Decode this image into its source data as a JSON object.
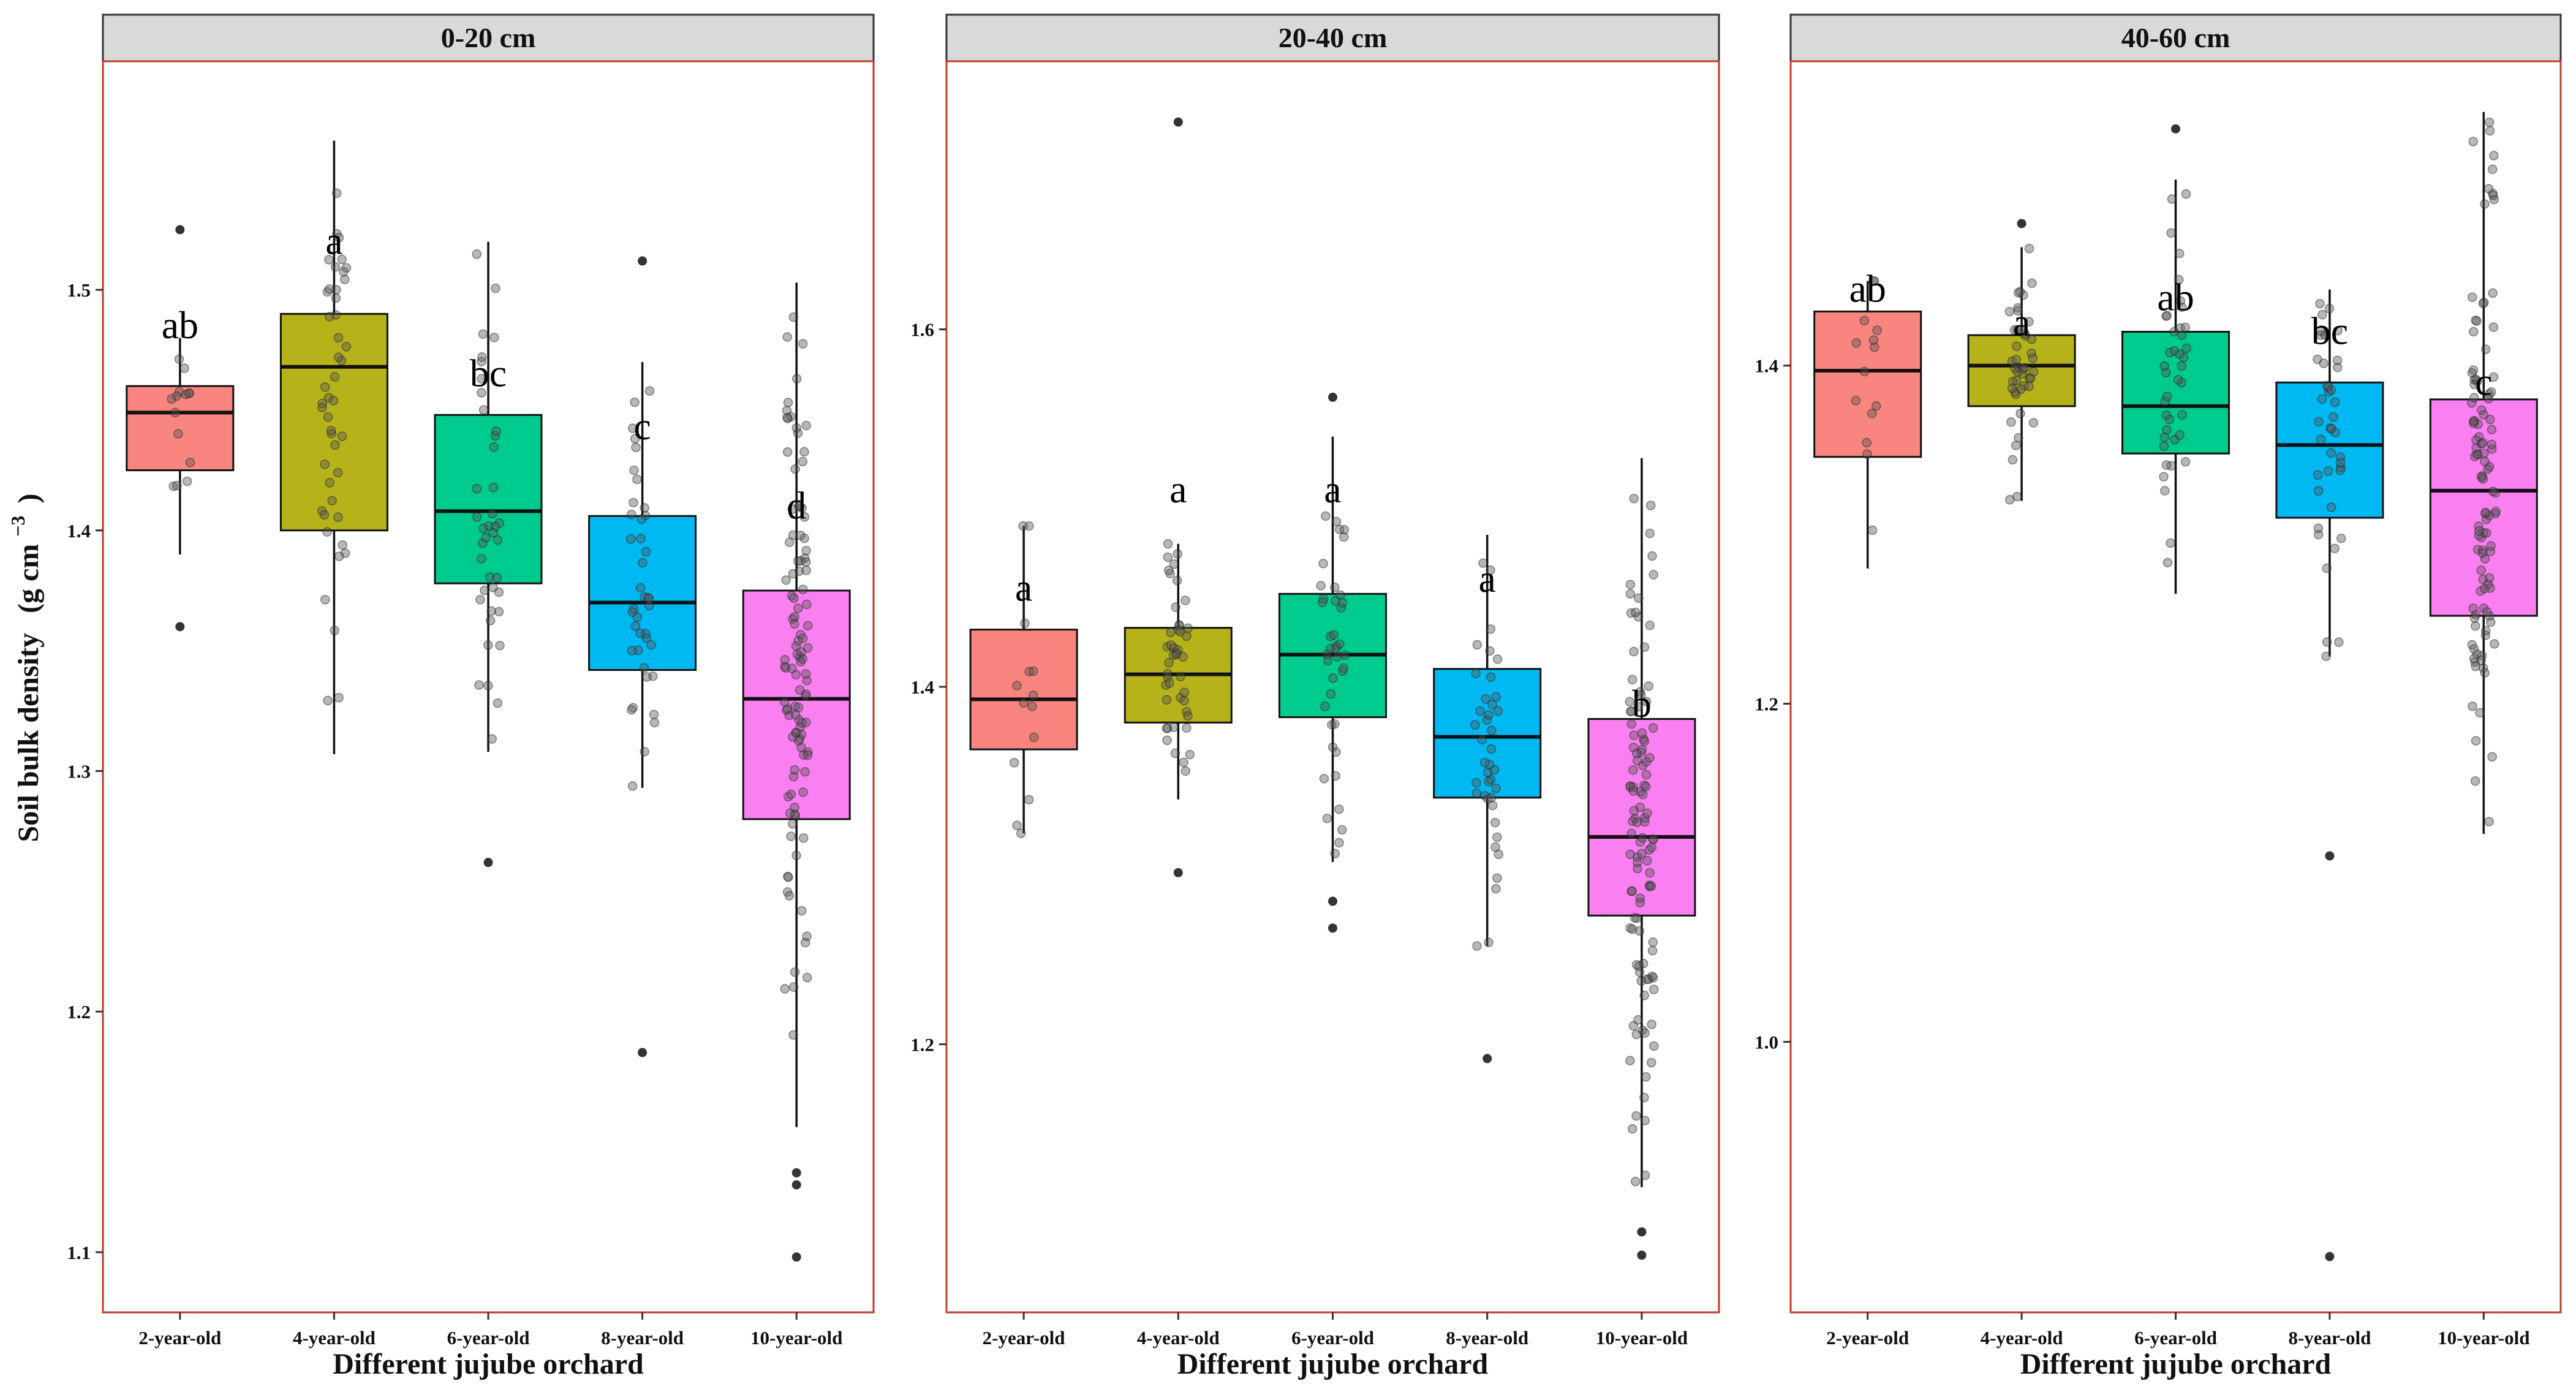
{
  "chart_data": {
    "type": "boxplot",
    "y_axis_title": "Soil bulk density",
    "y_axis_unit_open": "(g cm",
    "y_axis_unit_sup": "−3",
    "y_axis_unit_close": ")",
    "x_axis_title": "Different jujube orchard",
    "categories": [
      "2-year-old",
      "4-year-old",
      "6-year-old",
      "8-year-old",
      "10-year-old"
    ],
    "colors": [
      "#F8857E",
      "#B5B21A",
      "#00CB8E",
      "#00B9F2",
      "#FA7FF0"
    ],
    "panels": [
      {
        "title": "0-20 cm",
        "ylim": [
          1.075,
          1.595
        ],
        "yticks": [
          "1.1",
          "1.2",
          "1.3",
          "1.4",
          "1.5"
        ],
        "tick_values": [
          1.1,
          1.2,
          1.3,
          1.4,
          1.5
        ],
        "boxes": [
          {
            "q1": 1.425,
            "median": 1.449,
            "q3": 1.46,
            "whisker_low": 1.39,
            "whisker_high": 1.48,
            "outliers": [
              1.36,
              1.525
            ],
            "n": 14
          },
          {
            "q1": 1.4,
            "median": 1.468,
            "q3": 1.49,
            "whisker_low": 1.307,
            "whisker_high": 1.562,
            "outliers": [],
            "n": 45
          },
          {
            "q1": 1.378,
            "median": 1.408,
            "q3": 1.448,
            "whisker_low": 1.308,
            "whisker_high": 1.52,
            "outliers": [
              1.262
            ],
            "n": 40
          },
          {
            "q1": 1.342,
            "median": 1.37,
            "q3": 1.406,
            "whisker_low": 1.293,
            "whisker_high": 1.47,
            "outliers": [
              1.183,
              1.512
            ],
            "n": 40
          },
          {
            "q1": 1.28,
            "median": 1.33,
            "q3": 1.375,
            "whisker_low": 1.152,
            "whisker_high": 1.503,
            "outliers": [
              1.098,
              1.128,
              1.133
            ],
            "n": 110
          }
        ],
        "labels": [
          "ab",
          "a",
          "bc",
          "c",
          "d"
        ],
        "label_values": [
          1.485,
          1.52,
          1.465,
          1.443,
          1.41
        ]
      },
      {
        "title": "20-40 cm",
        "ylim": [
          1.05,
          1.75
        ],
        "yticks": [
          "1.2",
          "1.4",
          "1.6"
        ],
        "tick_values": [
          1.2,
          1.4,
          1.6
        ],
        "boxes": [
          {
            "q1": 1.365,
            "median": 1.393,
            "q3": 1.432,
            "whisker_low": 1.318,
            "whisker_high": 1.49,
            "outliers": [],
            "n": 14
          },
          {
            "q1": 1.38,
            "median": 1.407,
            "q3": 1.433,
            "whisker_low": 1.337,
            "whisker_high": 1.48,
            "outliers": [
              1.296,
              1.716
            ],
            "n": 45
          },
          {
            "q1": 1.383,
            "median": 1.418,
            "q3": 1.452,
            "whisker_low": 1.302,
            "whisker_high": 1.54,
            "outliers": [
              1.265,
              1.28,
              1.562
            ],
            "n": 40
          },
          {
            "q1": 1.338,
            "median": 1.372,
            "q3": 1.41,
            "whisker_low": 1.255,
            "whisker_high": 1.485,
            "outliers": [
              1.192
            ],
            "n": 40
          },
          {
            "q1": 1.272,
            "median": 1.316,
            "q3": 1.382,
            "whisker_low": 1.12,
            "whisker_high": 1.528,
            "outliers": [
              1.082,
              1.095
            ],
            "n": 110
          }
        ],
        "labels": [
          "a",
          "a",
          "a",
          "a",
          "b"
        ],
        "label_values": [
          1.455,
          1.51,
          1.51,
          1.46,
          1.39
        ]
      },
      {
        "title": "40-60 cm",
        "ylim": [
          0.84,
          1.58
        ],
        "yticks": [
          "1.0",
          "1.2",
          "1.4"
        ],
        "tick_values": [
          1.0,
          1.2,
          1.4
        ],
        "boxes": [
          {
            "q1": 1.346,
            "median": 1.397,
            "q3": 1.432,
            "whisker_low": 1.28,
            "whisker_high": 1.45,
            "outliers": [],
            "n": 14
          },
          {
            "q1": 1.376,
            "median": 1.4,
            "q3": 1.418,
            "whisker_low": 1.32,
            "whisker_high": 1.47,
            "outliers": [
              1.484
            ],
            "n": 45
          },
          {
            "q1": 1.348,
            "median": 1.376,
            "q3": 1.42,
            "whisker_low": 1.265,
            "whisker_high": 1.51,
            "outliers": [
              1.54
            ],
            "n": 40
          },
          {
            "q1": 1.31,
            "median": 1.353,
            "q3": 1.39,
            "whisker_low": 1.228,
            "whisker_high": 1.445,
            "outliers": [
              1.11,
              0.873
            ],
            "n": 40
          },
          {
            "q1": 1.252,
            "median": 1.326,
            "q3": 1.38,
            "whisker_low": 1.123,
            "whisker_high": 1.55,
            "outliers": [],
            "n": 110
          }
        ],
        "labels": [
          "ab",
          "a",
          "ab",
          "bc",
          "c"
        ],
        "label_values": [
          1.445,
          1.425,
          1.44,
          1.42,
          1.39
        ]
      }
    ]
  }
}
